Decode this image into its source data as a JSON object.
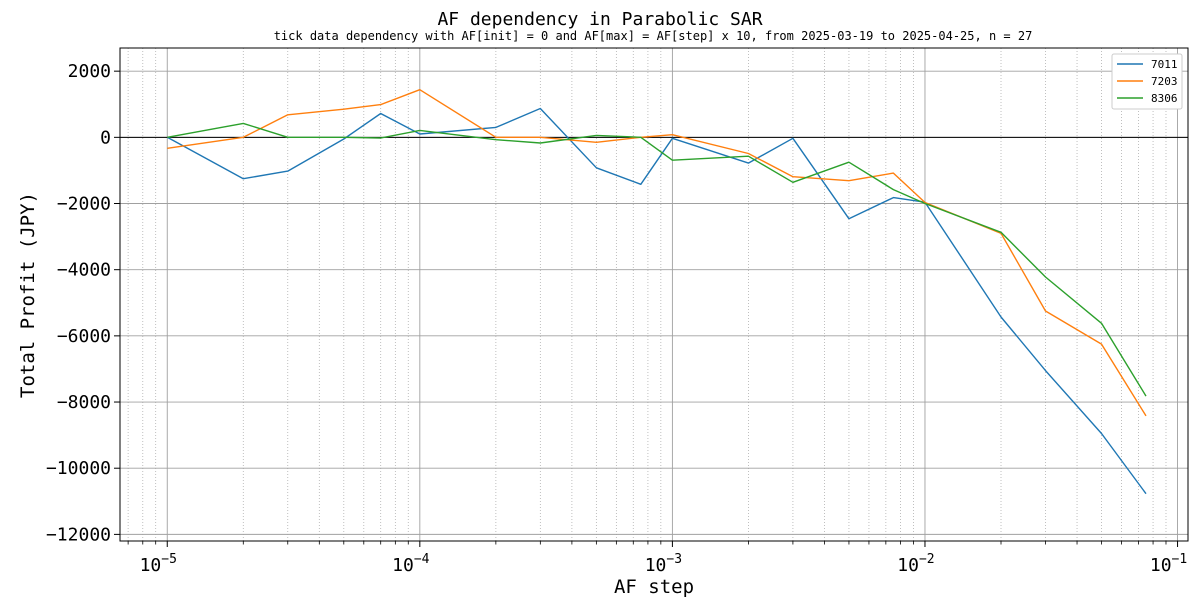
{
  "chart_data": {
    "type": "line",
    "title": "AF dependency in Parabolic SAR",
    "subtitle": "tick data dependency with AF[init] = 0 and AF[max] = AF[step] x 10, from 2025-03-19 to 2025-04-25, n = 27",
    "xlabel": "AF step",
    "ylabel": "Total Profit (JPY)",
    "xscale": "log",
    "xlim": [
      6.5e-06,
      0.11
    ],
    "ylim": [
      -12200,
      2700
    ],
    "x_ticks": [
      {
        "value": 1e-05,
        "mantissa": "10",
        "exponent": "−5"
      },
      {
        "value": 0.0001,
        "mantissa": "10",
        "exponent": "−4"
      },
      {
        "value": 0.001,
        "mantissa": "10",
        "exponent": "−3"
      },
      {
        "value": 0.01,
        "mantissa": "10",
        "exponent": "−2"
      },
      {
        "value": 0.1,
        "mantissa": "10",
        "exponent": "−1"
      }
    ],
    "y_ticks": [
      {
        "value": 2000,
        "label": "2000"
      },
      {
        "value": 0,
        "label": "0"
      },
      {
        "value": -2000,
        "label": "−2000"
      },
      {
        "value": -4000,
        "label": "−4000"
      },
      {
        "value": -6000,
        "label": "−6000"
      },
      {
        "value": -8000,
        "label": "−8000"
      },
      {
        "value": -10000,
        "label": "−10000"
      },
      {
        "value": -12000,
        "label": "−12000"
      }
    ],
    "grid": true,
    "minor_grid": true,
    "reference_line_y": 0,
    "legend_position": "top-right",
    "series": [
      {
        "name": "7011",
        "color": "#1f77b4",
        "points": [
          [
            1e-05,
            0
          ],
          [
            2e-05,
            -1250
          ],
          [
            3e-05,
            -1020
          ],
          [
            5e-05,
            -50
          ],
          [
            7e-05,
            720
          ],
          [
            0.0001,
            100
          ],
          [
            0.0002,
            300
          ],
          [
            0.0003,
            870
          ],
          [
            0.0005,
            -920
          ],
          [
            0.00075,
            -1420
          ],
          [
            0.001,
            -30
          ],
          [
            0.002,
            -780
          ],
          [
            0.003,
            -30
          ],
          [
            0.005,
            -2460
          ],
          [
            0.0075,
            -1820
          ],
          [
            0.01,
            -1960
          ],
          [
            0.02,
            -5430
          ],
          [
            0.03,
            -7050
          ],
          [
            0.05,
            -8950
          ],
          [
            0.075,
            -10770
          ]
        ]
      },
      {
        "name": "7203",
        "color": "#ff7f0e",
        "points": [
          [
            1e-05,
            -330
          ],
          [
            2e-05,
            0
          ],
          [
            3e-05,
            680
          ],
          [
            5e-05,
            850
          ],
          [
            7e-05,
            990
          ],
          [
            0.0001,
            1440
          ],
          [
            0.0002,
            0
          ],
          [
            0.0003,
            0
          ],
          [
            0.0005,
            -150
          ],
          [
            0.00075,
            0
          ],
          [
            0.001,
            80
          ],
          [
            0.002,
            -490
          ],
          [
            0.003,
            -1190
          ],
          [
            0.005,
            -1310
          ],
          [
            0.0075,
            -1080
          ],
          [
            0.01,
            -1970
          ],
          [
            0.02,
            -2900
          ],
          [
            0.03,
            -5250
          ],
          [
            0.05,
            -6250
          ],
          [
            0.075,
            -8420
          ]
        ]
      },
      {
        "name": "8306",
        "color": "#2ca02c",
        "points": [
          [
            1e-05,
            0
          ],
          [
            2e-05,
            420
          ],
          [
            3e-05,
            0
          ],
          [
            5e-05,
            0
          ],
          [
            7e-05,
            -20
          ],
          [
            0.0001,
            210
          ],
          [
            0.0002,
            -70
          ],
          [
            0.0003,
            -170
          ],
          [
            0.0005,
            60
          ],
          [
            0.00075,
            0
          ],
          [
            0.001,
            -690
          ],
          [
            0.002,
            -570
          ],
          [
            0.003,
            -1360
          ],
          [
            0.005,
            -750
          ],
          [
            0.0075,
            -1580
          ],
          [
            0.01,
            -2000
          ],
          [
            0.02,
            -2870
          ],
          [
            0.03,
            -4220
          ],
          [
            0.05,
            -5620
          ],
          [
            0.075,
            -7820
          ]
        ]
      }
    ]
  }
}
